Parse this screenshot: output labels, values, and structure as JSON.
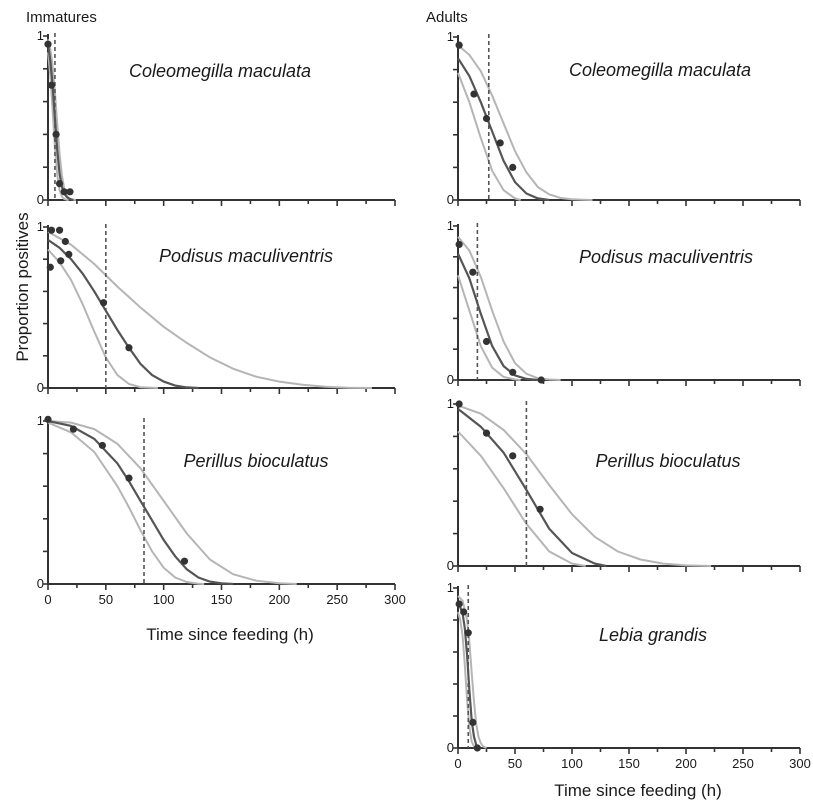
{
  "columns": {
    "left_title": "Immatures",
    "right_title": "Adults"
  },
  "ylabel": "Proportion positives",
  "xlabel": "Time since feeding (h)",
  "colors": {
    "fit_line": "#555555",
    "ci_line": "#b5b5b5",
    "points": "#333333",
    "axis": "#333333"
  },
  "chart_data": [
    {
      "type": "line",
      "group": "Immatures",
      "species": "Coleomegilla maculata",
      "xlim": [
        0,
        300
      ],
      "ylim": [
        0,
        1
      ],
      "ytick_labels": [
        "0",
        "1"
      ],
      "xtick_labels": [],
      "half_time": 6,
      "points": [
        [
          0,
          0.95
        ],
        [
          3,
          0.7
        ],
        [
          7,
          0.4
        ],
        [
          10,
          0.1
        ],
        [
          14,
          0.05
        ],
        [
          19,
          0.05
        ]
      ],
      "series": [
        {
          "name": "",
          "role": "fit",
          "x": [
            0,
            2,
            4,
            6,
            8,
            10,
            12,
            14,
            16,
            18,
            20,
            22
          ],
          "y": [
            0.95,
            0.85,
            0.7,
            0.5,
            0.3,
            0.16,
            0.08,
            0.04,
            0.02,
            0.01,
            0.003,
            0
          ]
        },
        {
          "name": "",
          "role": "ci",
          "x": [
            0,
            2,
            4,
            6,
            8,
            10,
            12,
            14,
            16,
            18,
            20,
            22,
            24
          ],
          "y": [
            0.98,
            0.92,
            0.82,
            0.66,
            0.46,
            0.28,
            0.15,
            0.07,
            0.03,
            0.012,
            0.005,
            0.002,
            0
          ]
        },
        {
          "name": "",
          "role": "ci",
          "x": [
            0,
            2,
            4,
            6,
            8,
            10,
            12,
            14,
            16,
            18
          ],
          "y": [
            0.9,
            0.76,
            0.55,
            0.32,
            0.15,
            0.06,
            0.02,
            0.007,
            0.002,
            0
          ]
        }
      ]
    },
    {
      "type": "line",
      "group": "Immatures",
      "species": "Podisus maculiventris",
      "xlim": [
        0,
        300
      ],
      "ylim": [
        0,
        1
      ],
      "ytick_labels": [
        "0",
        "1"
      ],
      "xtick_labels": [],
      "half_time": 50,
      "points": [
        [
          3,
          0.98
        ],
        [
          10,
          0.98
        ],
        [
          2,
          0.75
        ],
        [
          11,
          0.79
        ],
        [
          15,
          0.91
        ],
        [
          18,
          0.83
        ],
        [
          48,
          0.53
        ],
        [
          70,
          0.25
        ]
      ],
      "series": [
        {
          "name": "",
          "role": "fit",
          "x": [
            0,
            10,
            20,
            30,
            40,
            50,
            60,
            70,
            80,
            90,
            100,
            110,
            120,
            130
          ],
          "y": [
            0.92,
            0.87,
            0.8,
            0.71,
            0.6,
            0.48,
            0.36,
            0.25,
            0.15,
            0.08,
            0.04,
            0.015,
            0.004,
            0
          ]
        },
        {
          "name": "",
          "role": "ci",
          "x": [
            0,
            20,
            40,
            60,
            80,
            100,
            120,
            140,
            160,
            180,
            200,
            220,
            240,
            260,
            280
          ],
          "y": [
            0.97,
            0.89,
            0.77,
            0.63,
            0.5,
            0.38,
            0.28,
            0.19,
            0.12,
            0.07,
            0.04,
            0.02,
            0.008,
            0.002,
            0
          ]
        },
        {
          "name": "",
          "role": "ci",
          "x": [
            0,
            10,
            20,
            30,
            40,
            50,
            60,
            70,
            80,
            90,
            95
          ],
          "y": [
            0.86,
            0.78,
            0.67,
            0.52,
            0.35,
            0.19,
            0.08,
            0.025,
            0.005,
            0.001,
            0
          ]
        }
      ]
    },
    {
      "type": "line",
      "group": "Immatures",
      "species": "Perillus bioculatus",
      "xlim": [
        0,
        300
      ],
      "ylim": [
        0,
        1
      ],
      "ytick_labels": [
        "0",
        "1"
      ],
      "xtick_labels": [
        "0",
        "50",
        "100",
        "150",
        "200",
        "250",
        "300"
      ],
      "half_time": 83,
      "points": [
        [
          0,
          1.01
        ],
        [
          22,
          0.95
        ],
        [
          47,
          0.85
        ],
        [
          70,
          0.65
        ],
        [
          118,
          0.14
        ]
      ],
      "series": [
        {
          "name": "",
          "role": "fit",
          "x": [
            0,
            20,
            40,
            60,
            70,
            80,
            90,
            100,
            110,
            120,
            130,
            140,
            150,
            160
          ],
          "y": [
            1.0,
            0.97,
            0.89,
            0.74,
            0.63,
            0.51,
            0.39,
            0.27,
            0.17,
            0.09,
            0.04,
            0.015,
            0.004,
            0
          ]
        },
        {
          "name": "",
          "role": "ci",
          "x": [
            0,
            20,
            40,
            60,
            80,
            100,
            120,
            140,
            160,
            180,
            200,
            215
          ],
          "y": [
            1.0,
            0.99,
            0.95,
            0.86,
            0.71,
            0.51,
            0.31,
            0.15,
            0.06,
            0.02,
            0.005,
            0
          ]
        },
        {
          "name": "",
          "role": "ci",
          "x": [
            0,
            20,
            40,
            60,
            70,
            80,
            90,
            100,
            110,
            120,
            130,
            135
          ],
          "y": [
            0.99,
            0.93,
            0.81,
            0.6,
            0.47,
            0.33,
            0.2,
            0.1,
            0.04,
            0.012,
            0.002,
            0
          ]
        }
      ]
    },
    {
      "type": "line",
      "group": "Adults",
      "species": "Coleomegilla maculata",
      "xlim": [
        0,
        300
      ],
      "ylim": [
        0,
        1
      ],
      "ytick_labels": [
        "0",
        "1"
      ],
      "xtick_labels": [],
      "half_time": 27,
      "points": [
        [
          1,
          0.95
        ],
        [
          14,
          0.65
        ],
        [
          25,
          0.5
        ],
        [
          37,
          0.35
        ],
        [
          48,
          0.2
        ]
      ],
      "series": [
        {
          "name": "",
          "role": "fit",
          "x": [
            0,
            10,
            20,
            30,
            40,
            50,
            60,
            70,
            80
          ],
          "y": [
            0.87,
            0.76,
            0.6,
            0.42,
            0.24,
            0.11,
            0.04,
            0.01,
            0
          ]
        },
        {
          "name": "",
          "role": "ci",
          "x": [
            0,
            10,
            20,
            30,
            40,
            50,
            60,
            70,
            80,
            90,
            100,
            110,
            118
          ],
          "y": [
            0.95,
            0.89,
            0.79,
            0.64,
            0.47,
            0.3,
            0.17,
            0.08,
            0.035,
            0.012,
            0.004,
            0.001,
            0
          ]
        },
        {
          "name": "",
          "role": "ci",
          "x": [
            0,
            10,
            20,
            30,
            40,
            50,
            55
          ],
          "y": [
            0.78,
            0.6,
            0.38,
            0.18,
            0.06,
            0.01,
            0
          ]
        }
      ]
    },
    {
      "type": "line",
      "group": "Adults",
      "species": "Podisus maculiventris",
      "xlim": [
        0,
        300
      ],
      "ylim": [
        0,
        1
      ],
      "ytick_labels": [
        "0",
        "1"
      ],
      "xtick_labels": [],
      "half_time": 17,
      "points": [
        [
          1,
          0.88
        ],
        [
          13,
          0.7
        ],
        [
          25,
          0.25
        ],
        [
          48,
          0.05
        ],
        [
          73,
          0.0
        ]
      ],
      "series": [
        {
          "name": "",
          "role": "fit",
          "x": [
            0,
            10,
            20,
            30,
            40,
            50,
            60,
            70
          ],
          "y": [
            0.82,
            0.66,
            0.43,
            0.22,
            0.09,
            0.03,
            0.007,
            0
          ]
        },
        {
          "name": "",
          "role": "ci",
          "x": [
            0,
            10,
            20,
            30,
            40,
            50,
            60,
            70,
            80,
            90
          ],
          "y": [
            0.93,
            0.84,
            0.67,
            0.45,
            0.25,
            0.11,
            0.04,
            0.012,
            0.003,
            0
          ]
        },
        {
          "name": "",
          "role": "ci",
          "x": [
            0,
            10,
            20,
            30,
            40,
            50,
            55
          ],
          "y": [
            0.68,
            0.45,
            0.22,
            0.08,
            0.02,
            0.003,
            0
          ]
        }
      ]
    },
    {
      "type": "line",
      "group": "Adults",
      "species": "Perillus bioculatus",
      "xlim": [
        0,
        300
      ],
      "ylim": [
        0,
        1
      ],
      "ytick_labels": [
        "0",
        "1"
      ],
      "xtick_labels": [],
      "half_time": 60,
      "points": [
        [
          1,
          1.0
        ],
        [
          25,
          0.82
        ],
        [
          48,
          0.68
        ],
        [
          72,
          0.35
        ]
      ],
      "series": [
        {
          "name": "",
          "role": "fit",
          "x": [
            0,
            20,
            40,
            60,
            80,
            100,
            120,
            130
          ],
          "y": [
            0.97,
            0.86,
            0.7,
            0.47,
            0.23,
            0.08,
            0.015,
            0
          ]
        },
        {
          "name": "",
          "role": "ci",
          "x": [
            0,
            20,
            40,
            60,
            80,
            100,
            120,
            140,
            160,
            180,
            200,
            222
          ],
          "y": [
            0.99,
            0.94,
            0.84,
            0.69,
            0.5,
            0.32,
            0.18,
            0.09,
            0.04,
            0.015,
            0.004,
            0
          ]
        },
        {
          "name": "",
          "role": "ci",
          "x": [
            0,
            20,
            40,
            60,
            80,
            100,
            112
          ],
          "y": [
            0.83,
            0.68,
            0.48,
            0.26,
            0.09,
            0.015,
            0
          ]
        }
      ]
    },
    {
      "type": "line",
      "group": "Adults",
      "species": "Lebia grandis",
      "xlim": [
        0,
        300
      ],
      "ylim": [
        0,
        1
      ],
      "ytick_labels": [
        "0",
        "1"
      ],
      "xtick_labels": [
        "0",
        "50",
        "100",
        "150",
        "200",
        "250",
        "300"
      ],
      "half_time": 9,
      "points": [
        [
          1,
          0.9
        ],
        [
          5,
          0.85
        ],
        [
          9,
          0.72
        ],
        [
          13,
          0.16
        ],
        [
          17,
          0.0
        ]
      ],
      "series": [
        {
          "name": "",
          "role": "fit",
          "x": [
            0,
            2,
            4,
            6,
            8,
            10,
            12,
            14,
            16,
            18,
            20
          ],
          "y": [
            0.9,
            0.88,
            0.84,
            0.75,
            0.58,
            0.36,
            0.17,
            0.07,
            0.02,
            0.005,
            0
          ]
        },
        {
          "name": "",
          "role": "ci",
          "x": [
            0,
            4,
            8,
            10,
            12,
            14,
            16,
            18,
            20,
            22,
            25
          ],
          "y": [
            0.95,
            0.92,
            0.8,
            0.66,
            0.47,
            0.29,
            0.15,
            0.07,
            0.03,
            0.01,
            0
          ]
        },
        {
          "name": "",
          "role": "ci",
          "x": [
            0,
            2,
            4,
            6,
            8,
            10,
            12,
            14,
            16
          ],
          "y": [
            0.85,
            0.8,
            0.7,
            0.52,
            0.3,
            0.13,
            0.04,
            0.01,
            0
          ]
        }
      ]
    }
  ]
}
